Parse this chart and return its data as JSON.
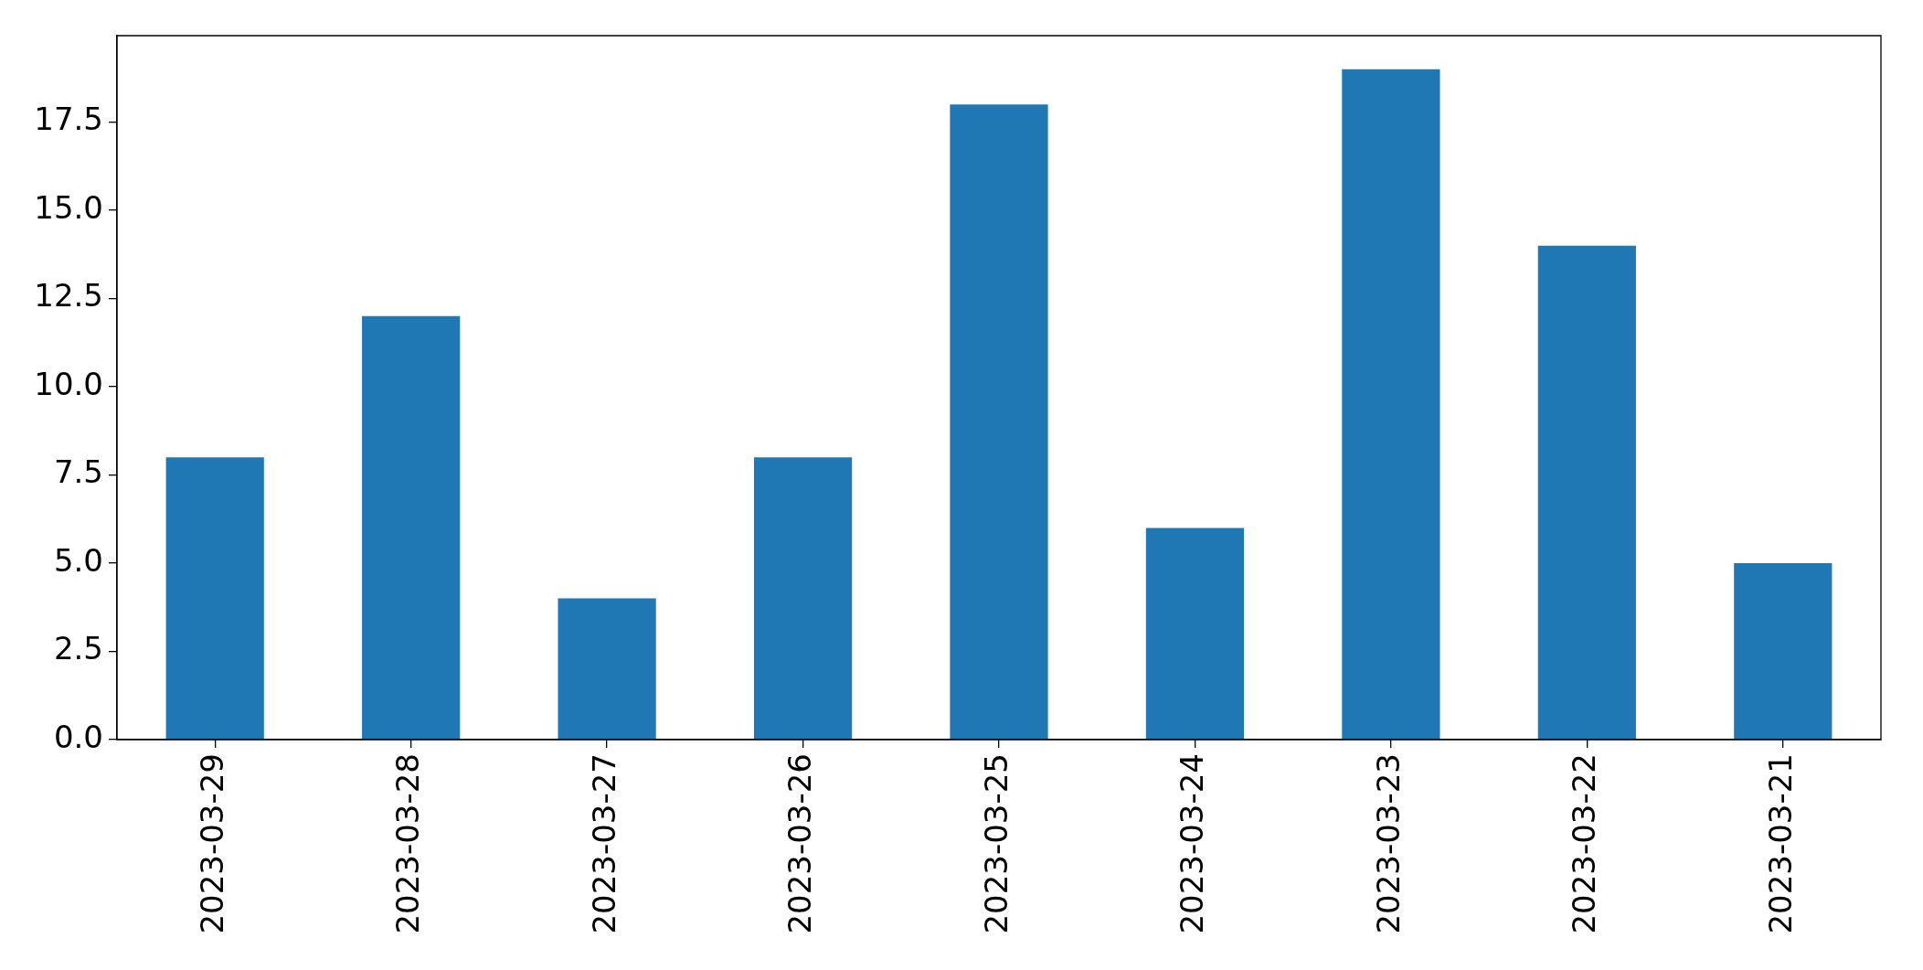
{
  "chart_data": {
    "type": "bar",
    "categories": [
      "2023-03-29",
      "2023-03-28",
      "2023-03-27",
      "2023-03-26",
      "2023-03-25",
      "2023-03-24",
      "2023-03-23",
      "2023-03-22",
      "2023-03-21"
    ],
    "values": [
      8,
      12,
      4,
      8,
      18,
      6,
      19,
      14,
      5
    ],
    "color": "#1f77b4",
    "ylim": [
      0,
      19.95
    ],
    "yticks": [
      {
        "value": 0,
        "label": "0.0"
      },
      {
        "value": 2.5,
        "label": "2.5"
      },
      {
        "value": 5,
        "label": "5.0"
      },
      {
        "value": 7.5,
        "label": "7.5"
      },
      {
        "value": 10,
        "label": "10.0"
      },
      {
        "value": 12.5,
        "label": "12.5"
      },
      {
        "value": 15,
        "label": "15.0"
      },
      {
        "value": 17.5,
        "label": "17.5"
      }
    ]
  }
}
